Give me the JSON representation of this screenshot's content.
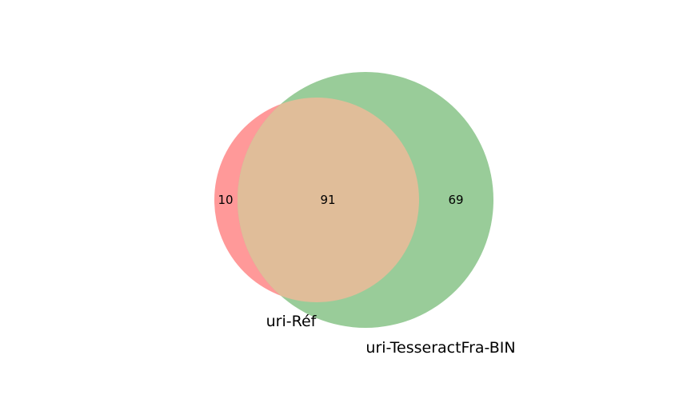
{
  "venn": {
    "sets": [
      {
        "label": "uri-Réf",
        "color": "#ff9999"
      },
      {
        "label": "uri-TesseractFra-BIN",
        "color": "#99cc99"
      }
    ],
    "intersection_color": "#e0bd99",
    "regions": {
      "only_a": "10",
      "both": "91",
      "only_b": "69"
    }
  }
}
